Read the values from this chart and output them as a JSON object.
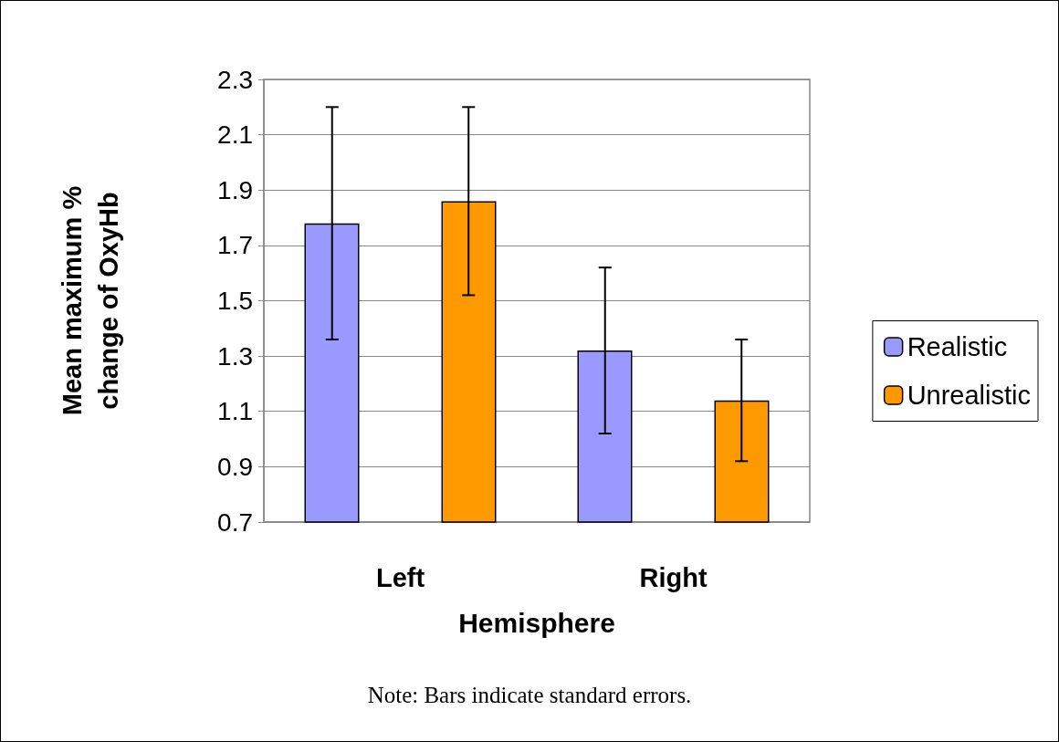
{
  "chart_data": {
    "type": "bar",
    "categories": [
      "Left",
      "Right"
    ],
    "series": [
      {
        "name": "Realistic",
        "color": "#9999ff",
        "values": [
          1.78,
          1.32
        ],
        "errors": [
          0.42,
          0.3
        ]
      },
      {
        "name": "Unrealistic",
        "color": "#ff9900",
        "values": [
          1.86,
          1.14
        ],
        "errors": [
          0.34,
          0.22
        ]
      }
    ],
    "xlabel": "Hemisphere",
    "ylabel": "Mean maximum %\nchange of OxyHb",
    "ylim": [
      0.7,
      2.3
    ],
    "yticks": [
      0.7,
      0.9,
      1.1,
      1.3,
      1.5,
      1.7,
      1.9,
      2.1,
      2.3
    ],
    "grid": "y",
    "legend": "right",
    "annotations": [
      "Note: Bars indicate standard errors."
    ]
  }
}
